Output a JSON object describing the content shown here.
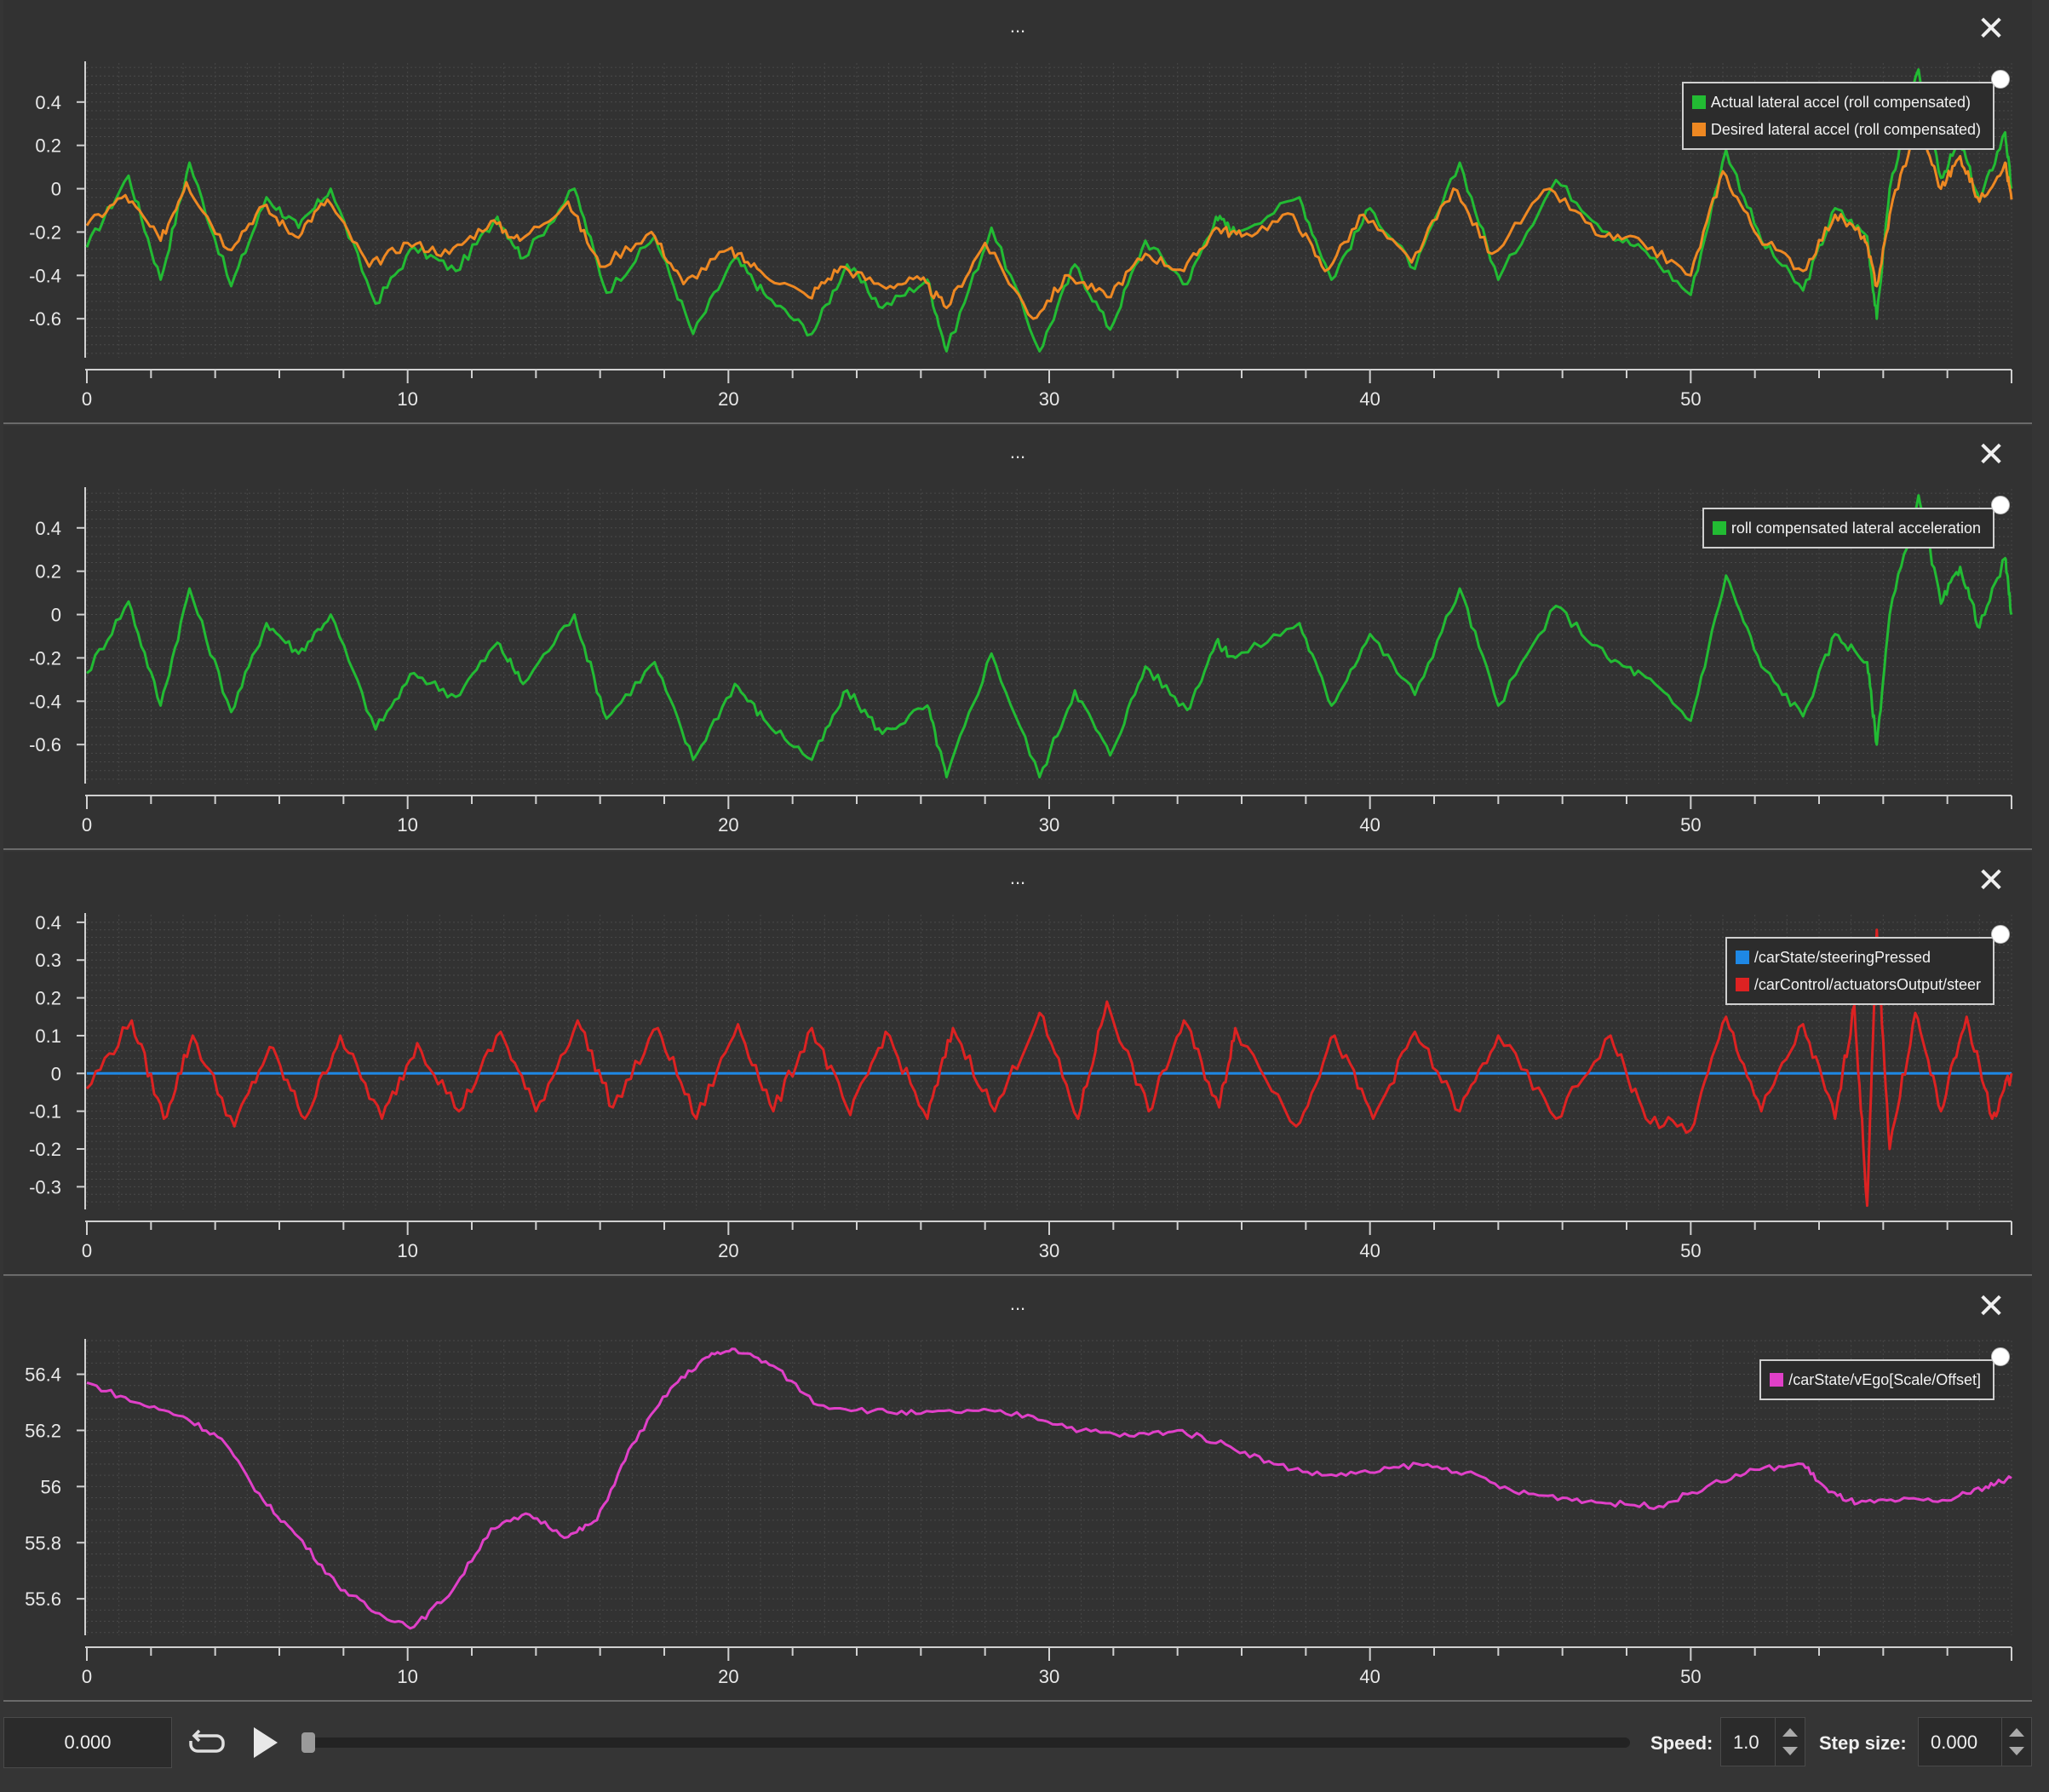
{
  "panels": [
    {
      "title": "...",
      "close_icon": "close-icon",
      "legend": [
        "Actual lateral accel (roll compensated)",
        "Desired lateral accel (roll compensated)"
      ],
      "chart_data": {
        "type": "line",
        "xlim": [
          0,
          60
        ],
        "ylim": [
          -0.78,
          0.58
        ],
        "xticks": [
          0,
          10,
          20,
          30,
          40,
          50
        ],
        "yticks": [
          0.4,
          0.2,
          0,
          -0.2,
          -0.4,
          -0.6
        ],
        "ytick_labels": [
          "0.4",
          "0.2",
          "0",
          "-0.2",
          "-0.4",
          "-0.6"
        ],
        "series": [
          {
            "name": "Actual lateral accel (roll compensated)",
            "color": "#22bb33",
            "x": [
              0,
              1.3,
              2.3,
              3.2,
              4.5,
              5.6,
              6.6,
              7.6,
              9.0,
              10.2,
              11.5,
              12.8,
              13.6,
              15.2,
              16.2,
              17.7,
              18.9,
              20.2,
              21.2,
              22.6,
              23.7,
              24.8,
              26.2,
              26.8,
              28.2,
              29.7,
              30.8,
              31.9,
              33.0,
              34.3,
              35.2,
              35.8,
              37.8,
              38.8,
              40.0,
              41.4,
              42.8,
              44.0,
              45.8,
              47.4,
              48.6,
              50.0,
              51.1,
              52.2,
              53.5,
              54.5,
              55.5,
              55.8,
              56.2,
              57.1,
              57.8,
              58.4,
              59.0,
              59.8,
              60.0
            ],
            "y": [
              -0.27,
              0.06,
              -0.42,
              0.12,
              -0.45,
              -0.04,
              -0.18,
              0.0,
              -0.53,
              -0.27,
              -0.38,
              -0.13,
              -0.32,
              0.0,
              -0.48,
              -0.22,
              -0.67,
              -0.32,
              -0.5,
              -0.67,
              -0.35,
              -0.55,
              -0.42,
              -0.75,
              -0.18,
              -0.75,
              -0.35,
              -0.65,
              -0.24,
              -0.44,
              -0.13,
              -0.2,
              -0.04,
              -0.42,
              -0.09,
              -0.37,
              0.12,
              -0.42,
              0.04,
              -0.2,
              -0.29,
              -0.49,
              0.18,
              -0.24,
              -0.47,
              -0.09,
              -0.22,
              -0.6,
              0.0,
              0.55,
              0.05,
              0.22,
              -0.06,
              0.26,
              0.0
            ]
          },
          {
            "name": "Desired lateral accel (roll compensated)",
            "color": "#ee8822",
            "x": [
              0,
              1.2,
              2.3,
              3.1,
              4.4,
              5.5,
              6.5,
              7.5,
              8.8,
              10.0,
              11.3,
              12.6,
              13.5,
              15.0,
              16.0,
              17.6,
              18.6,
              20.0,
              21.0,
              22.5,
              23.5,
              24.8,
              26.0,
              26.8,
              28.0,
              29.5,
              30.6,
              31.8,
              33.0,
              34.2,
              35.2,
              36.0,
              37.6,
              38.6,
              39.8,
              41.3,
              42.6,
              43.8,
              45.6,
              47.2,
              48.5,
              50.0,
              51.0,
              52.1,
              53.5,
              54.5,
              55.4,
              55.8,
              56.3,
              57.1,
              57.8,
              58.4,
              59.0,
              59.8,
              60.0
            ],
            "y": [
              -0.17,
              -0.03,
              -0.24,
              0.03,
              -0.28,
              -0.08,
              -0.22,
              -0.05,
              -0.36,
              -0.25,
              -0.3,
              -0.15,
              -0.24,
              -0.06,
              -0.36,
              -0.2,
              -0.44,
              -0.28,
              -0.38,
              -0.5,
              -0.36,
              -0.45,
              -0.42,
              -0.55,
              -0.25,
              -0.6,
              -0.4,
              -0.5,
              -0.3,
              -0.38,
              -0.18,
              -0.22,
              -0.12,
              -0.38,
              -0.12,
              -0.34,
              0.0,
              -0.3,
              0.0,
              -0.22,
              -0.25,
              -0.4,
              0.08,
              -0.22,
              -0.38,
              -0.12,
              -0.22,
              -0.45,
              -0.05,
              0.3,
              0.0,
              0.15,
              -0.06,
              0.12,
              -0.05
            ]
          }
        ]
      }
    },
    {
      "title": "...",
      "close_icon": "close-icon",
      "legend": [
        "roll compensated lateral acceleration"
      ],
      "chart_data": {
        "type": "line",
        "xlim": [
          0,
          60
        ],
        "ylim": [
          -0.78,
          0.58
        ],
        "xticks": [
          0,
          10,
          20,
          30,
          40,
          50
        ],
        "yticks": [
          0.4,
          0.2,
          0,
          -0.2,
          -0.4,
          -0.6
        ],
        "ytick_labels": [
          "0.4",
          "0.2",
          "0",
          "-0.2",
          "-0.4",
          "-0.6"
        ],
        "series": [
          {
            "name": "roll compensated lateral acceleration",
            "color": "#22bb33",
            "x": [
              0,
              1.3,
              2.3,
              3.2,
              4.5,
              5.6,
              6.6,
              7.6,
              9.0,
              10.2,
              11.5,
              12.8,
              13.6,
              15.2,
              16.2,
              17.7,
              18.9,
              20.2,
              21.2,
              22.6,
              23.7,
              24.8,
              26.2,
              26.8,
              28.2,
              29.7,
              30.8,
              31.9,
              33.0,
              34.3,
              35.2,
              35.8,
              37.8,
              38.8,
              40.0,
              41.4,
              42.8,
              44.0,
              45.8,
              47.4,
              48.6,
              50.0,
              51.1,
              52.2,
              53.5,
              54.5,
              55.5,
              55.8,
              56.2,
              57.1,
              57.8,
              58.4,
              59.0,
              59.8,
              60.0
            ],
            "y": [
              -0.27,
              0.06,
              -0.42,
              0.12,
              -0.45,
              -0.04,
              -0.18,
              0.0,
              -0.53,
              -0.27,
              -0.38,
              -0.13,
              -0.32,
              0.0,
              -0.48,
              -0.22,
              -0.67,
              -0.32,
              -0.5,
              -0.67,
              -0.35,
              -0.55,
              -0.42,
              -0.75,
              -0.18,
              -0.75,
              -0.35,
              -0.65,
              -0.24,
              -0.44,
              -0.13,
              -0.2,
              -0.04,
              -0.42,
              -0.09,
              -0.37,
              0.12,
              -0.42,
              0.04,
              -0.2,
              -0.29,
              -0.49,
              0.18,
              -0.24,
              -0.47,
              -0.09,
              -0.22,
              -0.6,
              0.0,
              0.55,
              0.05,
              0.22,
              -0.06,
              0.26,
              0.0
            ]
          }
        ]
      }
    },
    {
      "title": "...",
      "close_icon": "close-icon",
      "legend": [
        "/carState/steeringPressed",
        "/carControl/actuatorsOutput/steer"
      ],
      "chart_data": {
        "type": "line",
        "xlim": [
          0,
          60
        ],
        "ylim": [
          -0.36,
          0.42
        ],
        "xticks": [
          0,
          10,
          20,
          30,
          40,
          50
        ],
        "yticks": [
          0.4,
          0.3,
          0.2,
          0.1,
          0,
          -0.1,
          -0.2,
          -0.3
        ],
        "ytick_labels": [
          "0.4",
          "0.3",
          "0.2",
          "0.1",
          "0",
          "-0.1",
          "-0.2",
          "-0.3"
        ],
        "series": [
          {
            "name": "/carState/steeringPressed",
            "color": "#1e88e5",
            "x": [
              0,
              60
            ],
            "y": [
              0,
              0
            ]
          },
          {
            "name": "/carControl/actuatorsOutput/steer",
            "color": "#dd2222",
            "x": [
              0,
              1.4,
              2.4,
              3.3,
              4.6,
              5.7,
              6.8,
              7.9,
              9.2,
              10.3,
              11.6,
              12.9,
              14.0,
              15.3,
              16.4,
              17.8,
              19.0,
              20.3,
              21.4,
              22.6,
              23.8,
              24.9,
              26.2,
              27.0,
              28.3,
              29.7,
              30.9,
              31.8,
              33.1,
              34.2,
              35.3,
              35.8,
              37.7,
              38.9,
              40.1,
              41.4,
              42.8,
              44.0,
              45.8,
              47.5,
              48.6,
              50.0,
              51.1,
              52.2,
              53.5,
              54.5,
              55.1,
              55.5,
              55.8,
              56.2,
              57.0,
              57.8,
              58.6,
              59.4,
              60.0
            ],
            "y": [
              -0.04,
              0.14,
              -0.12,
              0.1,
              -0.14,
              0.07,
              -0.12,
              0.1,
              -0.12,
              0.08,
              -0.1,
              0.11,
              -0.1,
              0.14,
              -0.09,
              0.12,
              -0.12,
              0.13,
              -0.1,
              0.12,
              -0.11,
              0.11,
              -0.12,
              0.12,
              -0.1,
              0.16,
              -0.12,
              0.19,
              -0.1,
              0.14,
              -0.09,
              0.12,
              -0.14,
              0.1,
              -0.12,
              0.11,
              -0.1,
              0.1,
              -0.12,
              0.1,
              -0.12,
              -0.15,
              0.15,
              -0.1,
              0.13,
              -0.12,
              0.18,
              -0.35,
              0.38,
              -0.2,
              0.16,
              -0.1,
              0.15,
              -0.12,
              0.0
            ]
          }
        ]
      }
    },
    {
      "title": "...",
      "close_icon": "close-icon",
      "legend": [
        "/carState/vEgo[Scale/Offset]"
      ],
      "chart_data": {
        "type": "line",
        "xlim": [
          0,
          60
        ],
        "ylim": [
          55.47,
          56.52
        ],
        "xticks": [
          0,
          10,
          20,
          30,
          40,
          50
        ],
        "yticks": [
          56.4,
          56.2,
          56,
          55.8,
          55.6
        ],
        "ytick_labels": [
          "56.4",
          "56.2",
          "56",
          "55.8",
          "55.6"
        ],
        "series": [
          {
            "name": "/carState/vEgo[Scale/Offset]",
            "color": "#e040c8",
            "x": [
              0,
              1.5,
              3.0,
              4.2,
              5.5,
              6.6,
              7.8,
              9.0,
              10.2,
              11.4,
              12.6,
              13.8,
              15.0,
              15.9,
              17.0,
              18.2,
              19.3,
              20.2,
              21.4,
              22.8,
              24.5,
              26.0,
              27.8,
              29.5,
              31.0,
              32.5,
              34.0,
              35.5,
              37.0,
              38.5,
              40.0,
              41.5,
              43.0,
              44.5,
              46.0,
              47.5,
              49.0,
              50.5,
              52.0,
              53.5,
              54.3,
              55.2,
              56.5,
              58.0,
              59.2,
              60.0
            ],
            "y": [
              56.37,
              56.3,
              56.25,
              56.17,
              55.95,
              55.82,
              55.65,
              55.55,
              55.5,
              55.63,
              55.85,
              55.9,
              55.82,
              55.88,
              56.15,
              56.35,
              56.46,
              56.49,
              56.43,
              56.29,
              56.27,
              56.26,
              56.27,
              56.25,
              56.2,
              56.18,
              56.2,
              56.15,
              56.08,
              56.04,
              56.05,
              56.08,
              56.05,
              55.98,
              55.96,
              55.94,
              55.93,
              56.0,
              56.06,
              56.08,
              55.98,
              55.94,
              55.95,
              55.95,
              56.0,
              56.03
            ]
          }
        ]
      }
    }
  ],
  "bottom_bar": {
    "time": "0.000",
    "loop_icon": "loop-icon",
    "play_icon": "play-icon",
    "speed_label": "Speed:",
    "speed_value": "1.0",
    "step_label": "Step size:",
    "step_value": "0.000",
    "progress": 0.0
  }
}
